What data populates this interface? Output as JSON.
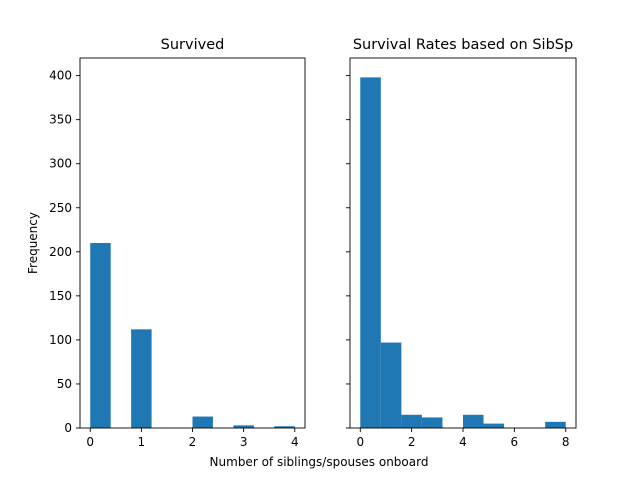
{
  "figure": {
    "xlabel": "Number of siblings/spouses onboard",
    "ylabel": "Frequency"
  },
  "chart_data": [
    {
      "type": "bar",
      "title": "Survived",
      "xlabel": "",
      "ylabel": "Frequency",
      "xlim": [
        -0.2,
        4.2
      ],
      "ylim": [
        0,
        420
      ],
      "xticks": [
        0,
        1,
        2,
        3,
        4
      ],
      "yticks": [
        0,
        50,
        100,
        150,
        200,
        250,
        300,
        350,
        400
      ],
      "bin_edges": [
        0,
        0.4,
        0.8,
        1.2,
        1.6,
        2.0,
        2.4,
        2.8,
        3.2,
        3.6,
        4.0
      ],
      "values": [
        210,
        0,
        112,
        0,
        0,
        13,
        0,
        3,
        0,
        2
      ],
      "color": "#1f77b4",
      "grid": false
    },
    {
      "type": "bar",
      "title": "Survival Rates based on SibSp",
      "xlabel": "",
      "ylabel": "",
      "xlim": [
        -0.4,
        8.4
      ],
      "ylim": [
        0,
        420
      ],
      "xticks": [
        0,
        2,
        4,
        6,
        8
      ],
      "yticks": [
        0,
        50,
        100,
        150,
        200,
        250,
        300,
        350,
        400
      ],
      "bin_edges": [
        0,
        0.8,
        1.6,
        2.4,
        3.2,
        4.0,
        4.8,
        5.6,
        6.4,
        7.2,
        8.0
      ],
      "values": [
        398,
        97,
        15,
        12,
        0,
        15,
        5,
        0,
        0,
        7
      ],
      "color": "#1f77b4",
      "grid": false
    }
  ]
}
